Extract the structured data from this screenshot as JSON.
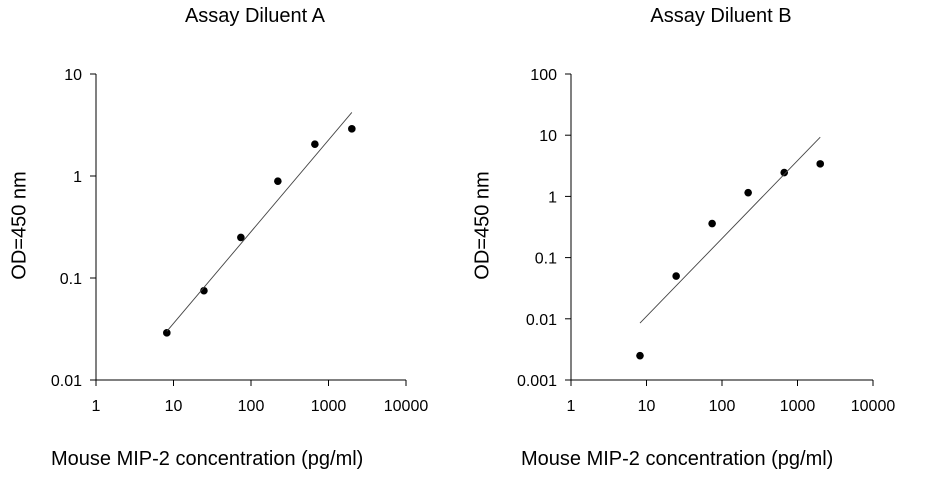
{
  "chart_data": [
    {
      "type": "scatter",
      "title": "Assay Diluent A",
      "xlabel": "Mouse MIP-2  concentration (pg/ml)",
      "ylabel": "OD=450 nm",
      "xscale": "log",
      "yscale": "log",
      "xlim": [
        1,
        10000
      ],
      "ylim": [
        0.01,
        10
      ],
      "xticks": [
        "1",
        "10",
        "100",
        "1000",
        "10000"
      ],
      "yticks": [
        "0.01",
        "0.1",
        "1",
        "10"
      ],
      "grid": false,
      "series": [
        {
          "kind": "points",
          "x": [
            8.2,
            24.7,
            74,
            222,
            667,
            2000
          ],
          "y": [
            0.029,
            0.075,
            0.25,
            0.89,
            2.05,
            2.9
          ]
        },
        {
          "kind": "fit-line",
          "x": [
            8.2,
            2000
          ],
          "y": [
            0.03,
            4.2
          ]
        }
      ]
    },
    {
      "type": "scatter",
      "title": "Assay Diluent B",
      "xlabel": "Mouse MIP-2  concentration (pg/ml)",
      "ylabel": "OD=450 nm",
      "xscale": "log",
      "yscale": "log",
      "xlim": [
        1,
        10000
      ],
      "ylim": [
        0.001,
        100
      ],
      "xticks": [
        "1",
        "10",
        "100",
        "1000",
        "10000"
      ],
      "yticks": [
        "0.001",
        "0.01",
        "0.1",
        "1",
        "10",
        "100"
      ],
      "grid": false,
      "series": [
        {
          "kind": "points",
          "x": [
            8.2,
            24.7,
            74,
            222,
            667,
            2000
          ],
          "y": [
            0.0025,
            0.05,
            0.36,
            1.15,
            2.45,
            3.4
          ]
        },
        {
          "kind": "fit-line",
          "x": [
            8.2,
            2000
          ],
          "y": [
            0.0085,
            9.3
          ]
        }
      ]
    }
  ]
}
